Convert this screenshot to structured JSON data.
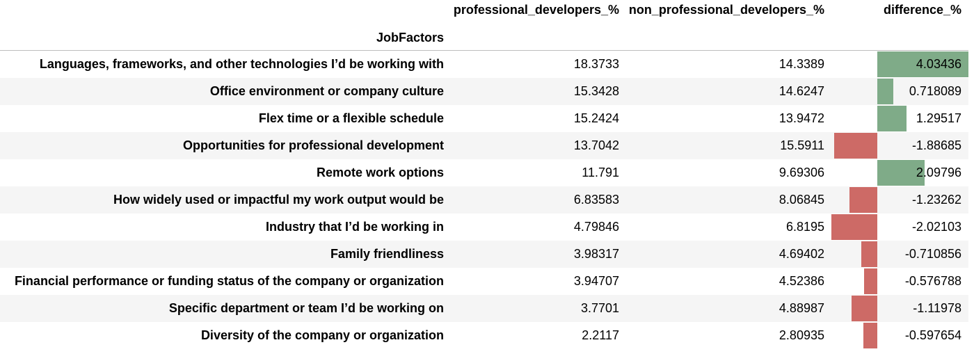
{
  "table": {
    "index_name": "JobFactors",
    "columns": [
      "professional_developers_%",
      "non_professional_developers_%",
      "difference_%"
    ],
    "bar_colors": {
      "positive": "#7fab88",
      "negative": "#cd6a66"
    },
    "bar_range": {
      "min": -2.02103,
      "max": 4.03436
    },
    "rows": [
      {
        "label": "Languages, frameworks, and other technologies I’d be working with",
        "prof": "18.3733",
        "nonprof": "14.3389",
        "diff": "4.03436",
        "diff_value": 4.03436
      },
      {
        "label": "Office environment or company culture",
        "prof": "15.3428",
        "nonprof": "14.6247",
        "diff": "0.718089",
        "diff_value": 0.718089
      },
      {
        "label": "Flex time or a flexible schedule",
        "prof": "15.2424",
        "nonprof": "13.9472",
        "diff": "1.29517",
        "diff_value": 1.29517
      },
      {
        "label": "Opportunities for professional development",
        "prof": "13.7042",
        "nonprof": "15.5911",
        "diff": "-1.88685",
        "diff_value": -1.88685
      },
      {
        "label": "Remote work options",
        "prof": "11.791",
        "nonprof": "9.69306",
        "diff": "2.09796",
        "diff_value": 2.09796
      },
      {
        "label": "How widely used or impactful my work output would be",
        "prof": "6.83583",
        "nonprof": "8.06845",
        "diff": "-1.23262",
        "diff_value": -1.23262
      },
      {
        "label": "Industry that I’d be working in",
        "prof": "4.79846",
        "nonprof": "6.8195",
        "diff": "-2.02103",
        "diff_value": -2.02103
      },
      {
        "label": "Family friendliness",
        "prof": "3.98317",
        "nonprof": "4.69402",
        "diff": "-0.710856",
        "diff_value": -0.710856
      },
      {
        "label": "Financial performance or funding status of the company or organization",
        "prof": "3.94707",
        "nonprof": "4.52386",
        "diff": "-0.576788",
        "diff_value": -0.576788
      },
      {
        "label": "Specific department or team I’d be working on",
        "prof": "3.7701",
        "nonprof": "4.88987",
        "diff": "-1.11978",
        "diff_value": -1.11978
      },
      {
        "label": "Diversity of the company or organization",
        "prof": "2.2117",
        "nonprof": "2.80935",
        "diff": "-0.597654",
        "diff_value": -0.597654
      }
    ]
  }
}
